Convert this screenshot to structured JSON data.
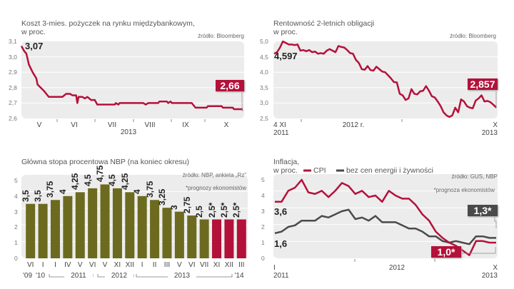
{
  "colors": {
    "red": "#b3113a",
    "olive": "#6b6a1f",
    "gray": "#4a4a4a",
    "panel": "#ececec"
  },
  "chart_data": [
    {
      "type": "line",
      "title": "Koszt 3-mies. pożyczek na rynku międzybankowym,",
      "subtitle": "w proc.",
      "source": "źródło: Bloomberg",
      "ylim": [
        2.6,
        3.1
      ],
      "yticks": [
        "3,1",
        "3,0",
        "2,9",
        "2,8",
        "2,7",
        "2,6"
      ],
      "xticks": [
        "V",
        "VI",
        "VII",
        "VIII",
        "IX",
        "X"
      ],
      "xyear": "2013",
      "start_label": "3,07",
      "end_label": "2,66",
      "points": [
        [
          "2013-04-30",
          3.07
        ],
        [
          "2013-05-02",
          3.04
        ],
        [
          "2013-05-04",
          3.02
        ],
        [
          "2013-05-06",
          2.95
        ],
        [
          "2013-05-09",
          2.9
        ],
        [
          "2013-05-12",
          2.86
        ],
        [
          "2013-05-13",
          2.82
        ],
        [
          "2013-05-18",
          2.78
        ],
        [
          "2013-05-22",
          2.74
        ],
        [
          "2013-06-02",
          2.74
        ],
        [
          "2013-06-05",
          2.76
        ],
        [
          "2013-06-08",
          2.76
        ],
        [
          "2013-06-10",
          2.75
        ],
        [
          "2013-06-13",
          2.75
        ],
        [
          "2013-06-14",
          2.7
        ],
        [
          "2013-06-15",
          2.74
        ],
        [
          "2013-06-18",
          2.74
        ],
        [
          "2013-06-20",
          2.73
        ],
        [
          "2013-06-22",
          2.74
        ],
        [
          "2013-06-25",
          2.72
        ],
        [
          "2013-06-28",
          2.72
        ],
        [
          "2013-06-30",
          2.69
        ],
        [
          "2013-07-14",
          2.69
        ],
        [
          "2013-07-15",
          2.7
        ],
        [
          "2013-07-17",
          2.69
        ],
        [
          "2013-07-18",
          2.7
        ],
        [
          "2013-08-06",
          2.7
        ],
        [
          "2013-08-08",
          2.69
        ],
        [
          "2013-08-10",
          2.7
        ],
        [
          "2013-08-18",
          2.7
        ],
        [
          "2013-08-19",
          2.71
        ],
        [
          "2013-08-25",
          2.71
        ],
        [
          "2013-08-26",
          2.7
        ],
        [
          "2013-08-28",
          2.71
        ],
        [
          "2013-08-29",
          2.7
        ],
        [
          "2013-09-14",
          2.7
        ],
        [
          "2013-09-17",
          2.67
        ],
        [
          "2013-09-26",
          2.67
        ],
        [
          "2013-09-27",
          2.68
        ],
        [
          "2013-10-08",
          2.68
        ],
        [
          "2013-10-09",
          2.67
        ],
        [
          "2013-10-17",
          2.67
        ],
        [
          "2013-10-18",
          2.66
        ],
        [
          "2013-10-25",
          2.66
        ]
      ]
    },
    {
      "type": "line",
      "title": "Rentowność 2-letnich obligacji",
      "subtitle": "w proc.",
      "source": "źródło: Bloomberg",
      "ylim": [
        2.5,
        5.0
      ],
      "yticks": [
        "5,0",
        "4,5",
        "4,0",
        "3,5",
        "3,0",
        "2,5"
      ],
      "xstart": [
        "4 XI",
        "2011"
      ],
      "xmid": "2012 r.",
      "xend": [
        "X",
        "2013"
      ],
      "start_label": "4,597",
      "end_label": "2,857",
      "values": [
        4.6,
        4.65,
        4.8,
        5.0,
        4.95,
        4.9,
        4.9,
        4.88,
        4.9,
        4.7,
        4.72,
        4.68,
        4.72,
        4.65,
        4.67,
        4.6,
        4.62,
        4.6,
        4.7,
        4.75,
        4.7,
        4.65,
        4.85,
        4.82,
        4.8,
        4.72,
        4.62,
        4.6,
        4.4,
        4.3,
        4.1,
        4.08,
        4.2,
        4.07,
        4.05,
        4.18,
        4.1,
        4.02,
        4.0,
        3.9,
        3.8,
        3.68,
        3.67,
        3.3,
        3.25,
        3.1,
        3.15,
        3.45,
        3.3,
        3.28,
        3.38,
        3.4,
        3.55,
        3.4,
        3.22,
        3.18,
        3.05,
        2.9,
        2.7,
        2.6,
        2.55,
        2.6,
        2.85,
        2.7,
        3.12,
        3.05,
        2.9,
        2.85,
        2.83,
        3.08,
        3.15,
        3.25,
        3.05,
        3.07,
        3.03,
        2.95,
        2.857
      ]
    },
    {
      "type": "bar",
      "title": "Główna stopa procentowa NBP (na koniec okresu)",
      "source": "źródło: NBP, ankieta „Rz”",
      "note": "*prognozy ekonomistów",
      "ylim": [
        0,
        5
      ],
      "yticks": [
        "5",
        "4",
        "3",
        "2",
        "1",
        "0"
      ],
      "categories": [
        "VI",
        "I",
        "I",
        "IV",
        "V",
        "VI",
        "V",
        "XI",
        "XII",
        "I",
        "II",
        "III",
        "V",
        "VI",
        "VII",
        "XI",
        "XII",
        "III"
      ],
      "values": [
        3.5,
        3.5,
        3.75,
        4,
        4.25,
        4.5,
        4.75,
        4.5,
        4.25,
        4,
        3.75,
        3.25,
        3,
        2.75,
        2.5,
        2.5,
        2.5,
        2.5
      ],
      "labels": [
        "3,5",
        "3,5",
        "3,75",
        "4",
        "4,25",
        "4,5",
        "4,75",
        "4,5",
        "4,25",
        "4",
        "3,75",
        "3,25",
        "3",
        "2,75",
        "2,5",
        "2,5*",
        "2,5*",
        "2,5*"
      ],
      "forecast": [
        false,
        false,
        false,
        false,
        false,
        false,
        false,
        false,
        false,
        false,
        false,
        false,
        false,
        false,
        false,
        true,
        true,
        true
      ],
      "years": {
        "y09": "'09",
        "y10": "'10",
        "y11": "2011",
        "y12": "2012",
        "y13": "2013",
        "y14": "'14"
      }
    },
    {
      "type": "line",
      "title": "Inflacja,",
      "subtitle": "w proc.",
      "source": "źródło: GUS, NBP",
      "note": "*prognoza ekonomistów",
      "ylim": [
        0,
        5
      ],
      "yticks": [
        "5",
        "4",
        "3",
        "2",
        "1",
        "0"
      ],
      "xstart": [
        "I",
        "2011"
      ],
      "xmid": "2012",
      "xend": [
        "X",
        "2013"
      ],
      "series": [
        {
          "name": "CPI",
          "color": "#b3113a",
          "start_label": "3,6",
          "end_label": "1,0*",
          "values": [
            3.6,
            3.6,
            4.3,
            4.5,
            5.0,
            4.2,
            4.1,
            4.3,
            3.9,
            4.3,
            4.8,
            4.6,
            4.1,
            4.3,
            3.9,
            4.0,
            3.6,
            4.3,
            4.0,
            3.8,
            3.8,
            3.4,
            2.8,
            2.4,
            1.7,
            1.3,
            1.0,
            0.8,
            0.5,
            0.2,
            1.1,
            1.1,
            1.0,
            1.0
          ]
        },
        {
          "name": "bez cen energii i żywności",
          "color": "#4a4a4a",
          "start_label": "1,6",
          "end_label": "1,3*",
          "values": [
            1.6,
            1.7,
            2.0,
            2.1,
            2.4,
            2.4,
            2.4,
            2.7,
            2.6,
            2.8,
            3.0,
            3.1,
            2.5,
            2.6,
            2.4,
            2.7,
            2.3,
            2.3,
            2.3,
            2.1,
            1.9,
            1.9,
            1.7,
            1.4,
            1.4,
            1.1,
            1.0,
            1.1,
            1.0,
            0.9,
            1.4,
            1.4,
            1.3,
            1.3
          ]
        }
      ]
    }
  ]
}
